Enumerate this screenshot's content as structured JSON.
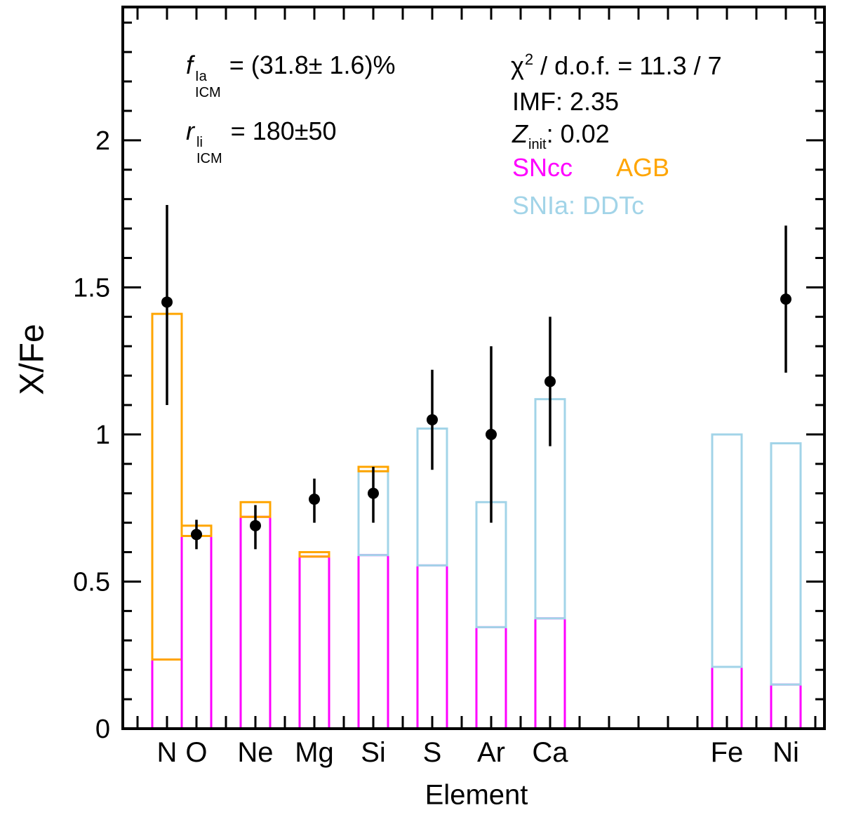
{
  "chart_data": {
    "type": "bar",
    "title": "",
    "xlabel": "Element",
    "ylabel": "X/Fe",
    "x_axis_is_atomic_number": true,
    "xlim": [
      5.5,
      29.31
    ],
    "ylim": [
      0,
      2.453
    ],
    "yticks": [
      0,
      0.5,
      1,
      1.5,
      2
    ],
    "ytick_labels": [
      "0",
      "0.5",
      "1",
      "1.5",
      "2"
    ],
    "ytick_minor_step": 0.1,
    "xticks_every": 1,
    "grid": false,
    "bar_width_units": 1.0,
    "elements": [
      {
        "label": "N",
        "Z": 7,
        "sncc": 0.235,
        "snia": null,
        "agb": 1.41,
        "obs": {
          "y": 1.45,
          "lo": 1.1,
          "hi": 1.78
        }
      },
      {
        "label": "O",
        "Z": 8,
        "sncc": 0.655,
        "snia": null,
        "agb": 0.69,
        "obs": {
          "y": 0.66,
          "lo": 0.61,
          "hi": 0.71
        }
      },
      {
        "label": "Ne",
        "Z": 10,
        "sncc": 0.72,
        "snia": null,
        "agb": 0.77,
        "obs": {
          "y": 0.69,
          "lo": 0.61,
          "hi": 0.76
        }
      },
      {
        "label": "Mg",
        "Z": 12,
        "sncc": 0.585,
        "snia": null,
        "agb": 0.6,
        "obs": {
          "y": 0.78,
          "lo": 0.7,
          "hi": 0.85
        }
      },
      {
        "label": "Si",
        "Z": 14,
        "sncc": 0.59,
        "snia": 0.875,
        "agb": 0.89,
        "obs": {
          "y": 0.8,
          "lo": 0.7,
          "hi": 0.89
        }
      },
      {
        "label": "S",
        "Z": 16,
        "sncc": 0.555,
        "snia": 1.02,
        "agb": null,
        "obs": {
          "y": 1.05,
          "lo": 0.88,
          "hi": 1.22
        }
      },
      {
        "label": "Ar",
        "Z": 18,
        "sncc": 0.345,
        "snia": 0.77,
        "agb": null,
        "obs": {
          "y": 1.0,
          "lo": 0.7,
          "hi": 1.3
        }
      },
      {
        "label": "Ca",
        "Z": 20,
        "sncc": 0.375,
        "snia": 1.12,
        "agb": null,
        "obs": {
          "y": 1.18,
          "lo": 0.96,
          "hi": 1.4
        }
      },
      {
        "label": "Fe",
        "Z": 26,
        "sncc": 0.21,
        "snia": 1.0,
        "agb": null,
        "obs": null
      },
      {
        "label": "Ni",
        "Z": 28,
        "sncc": 0.15,
        "snia": 0.97,
        "agb": null,
        "obs": {
          "y": 1.46,
          "lo": 1.21,
          "hi": 1.71
        }
      }
    ],
    "legend_position": "top-right-inside"
  },
  "colors": {
    "sncc": "#FF00FF",
    "agb": "#FFA500",
    "snia": "#A2D4E8",
    "points": "#000000",
    "frame": "#000000"
  },
  "annotations": {
    "f_icm": {
      "var": "f",
      "sup": "Ia",
      "sub": "ICM",
      "rest": "= (31.8± 1.6)%"
    },
    "r_icm": {
      "var": "r",
      "sup": "li",
      "sub": "ICM",
      "rest": "= 180±50"
    },
    "chi2": {
      "var": "χ",
      "sup": "2",
      "rest": " / d.o.f. = 11.3 / 7"
    },
    "imf": "IMF: 2.35",
    "zinit": {
      "var": "Z",
      "sub": "init",
      "rest": ": 0.02"
    },
    "legend": {
      "sncc": "SNcc",
      "agb": "AGB",
      "snia": "SNIa: DDTc"
    }
  }
}
